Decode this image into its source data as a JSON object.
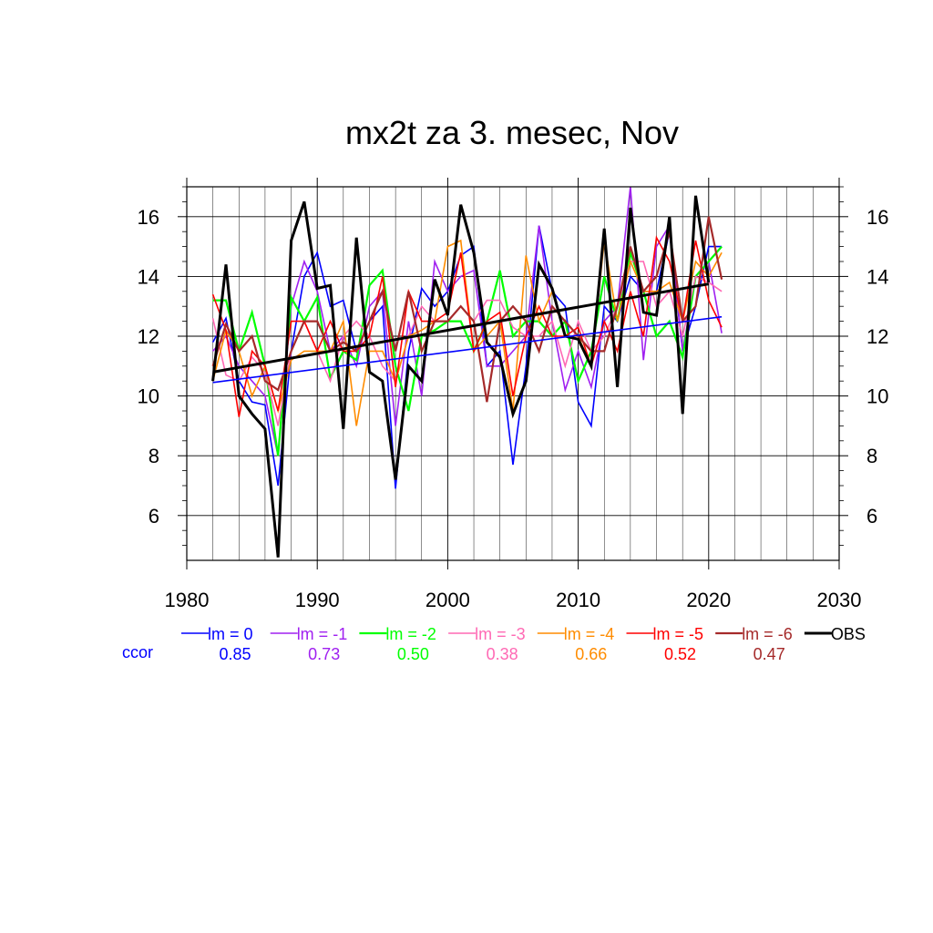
{
  "chart_data": {
    "type": "line",
    "title": "mx2t za 3. mesec, Nov",
    "xlabel": "",
    "ylabel": "",
    "xlim": [
      1980,
      2030
    ],
    "ylim": [
      4.5,
      17
    ],
    "x_ticks": [
      1980,
      1990,
      2000,
      2010,
      2020,
      2030
    ],
    "y_ticks": [
      6,
      8,
      10,
      12,
      14,
      16
    ],
    "grid": true,
    "legend_position": "bottom",
    "ccor_label": "ccor",
    "x": [
      1982,
      1983,
      1984,
      1985,
      1986,
      1987,
      1988,
      1989,
      1990,
      1991,
      1992,
      1993,
      1994,
      1995,
      1996,
      1997,
      1998,
      1999,
      2000,
      2001,
      2002,
      2003,
      2004,
      2005,
      2006,
      2007,
      2008,
      2009,
      2010,
      2011,
      2012,
      2013,
      2014,
      2015,
      2016,
      2017,
      2018,
      2019,
      2020,
      2021
    ],
    "series": [
      {
        "name": "lm = 0",
        "color": "#0000ff",
        "width": 1.6,
        "ccor": "0.85",
        "values": [
          11.8,
          12.6,
          10.5,
          9.8,
          9.7,
          7.0,
          11.5,
          14.0,
          14.8,
          13.0,
          13.2,
          11.5,
          12.5,
          13.0,
          6.9,
          11.5,
          13.6,
          13.0,
          13.5,
          14.7,
          15.0,
          11.0,
          11.5,
          7.7,
          11.0,
          15.7,
          13.5,
          13.0,
          9.8,
          9.0,
          13.0,
          12.5,
          14.0,
          13.5,
          13.5,
          15.5,
          11.5,
          13.0,
          15.0,
          15.0
        ]
      },
      {
        "name": "lm = -1",
        "color": "#a020f0",
        "width": 1.6,
        "ccor": "0.73",
        "values": [
          11.5,
          12.0,
          11.0,
          10.5,
          10.0,
          8.0,
          13.0,
          14.5,
          13.5,
          11.5,
          12.0,
          11.0,
          13.0,
          13.5,
          9.0,
          12.5,
          10.0,
          14.5,
          13.5,
          14.0,
          14.2,
          11.0,
          11.0,
          11.5,
          12.0,
          15.7,
          12.5,
          10.2,
          11.5,
          10.3,
          12.5,
          13.0,
          17.0,
          11.2,
          15.0,
          15.7,
          11.5,
          14.0,
          14.5,
          12.1
        ]
      },
      {
        "name": "lm = -2",
        "color": "#00ff00",
        "width": 2.2,
        "ccor": "0.50",
        "values": [
          13.2,
          13.2,
          11.5,
          12.8,
          11.0,
          8.0,
          13.3,
          12.5,
          13.3,
          10.6,
          11.5,
          11.2,
          13.7,
          14.2,
          11.0,
          9.5,
          12.0,
          12.2,
          12.5,
          12.5,
          11.5,
          12.5,
          14.2,
          12.0,
          12.5,
          12.5,
          12.0,
          12.5,
          10.5,
          11.5,
          14.0,
          12.5,
          14.8,
          13.5,
          12.0,
          12.5,
          11.3,
          14.0,
          14.5,
          15.0
        ]
      },
      {
        "name": "lm = -3",
        "color": "#ff69b4",
        "width": 1.6,
        "ccor": "0.38",
        "values": [
          12.6,
          10.7,
          10.5,
          11.3,
          10.8,
          9.0,
          11.5,
          12.5,
          11.5,
          10.5,
          12.0,
          12.5,
          12.0,
          11.0,
          10.5,
          12.0,
          13.0,
          12.5,
          12.5,
          13.0,
          12.5,
          13.2,
          13.2,
          12.3,
          12.0,
          12.0,
          12.5,
          11.0,
          12.5,
          11.5,
          12.0,
          13.0,
          14.5,
          14.5,
          13.0,
          13.5,
          12.0,
          14.0,
          13.8,
          13.5
        ]
      },
      {
        "name": "lm = -4",
        "color": "#ff8c00",
        "width": 1.6,
        "ccor": "0.66",
        "values": [
          10.5,
          12.2,
          11.5,
          10.0,
          11.0,
          9.5,
          11.2,
          11.5,
          11.5,
          11.5,
          12.5,
          9.0,
          11.5,
          11.5,
          10.5,
          12.0,
          12.2,
          12.5,
          15.0,
          15.2,
          11.5,
          12.0,
          12.5,
          9.5,
          14.7,
          12.5,
          13.5,
          12.0,
          12.0,
          11.0,
          15.2,
          12.5,
          14.5,
          13.5,
          13.5,
          13.8,
          12.5,
          14.5,
          14.0,
          14.8
        ]
      },
      {
        "name": "lm = -5",
        "color": "#ff0000",
        "width": 1.6,
        "ccor": "0.52",
        "values": [
          13.4,
          12.2,
          9.3,
          11.5,
          11.0,
          9.5,
          12.5,
          12.5,
          11.5,
          12.5,
          11.5,
          11.5,
          12.0,
          14.0,
          10.3,
          13.5,
          12.5,
          12.5,
          12.8,
          14.8,
          11.5,
          12.5,
          12.8,
          10.0,
          12.0,
          13.0,
          12.0,
          12.0,
          12.3,
          11.0,
          12.5,
          11.5,
          13.5,
          12.0,
          15.3,
          14.5,
          12.5,
          15.2,
          13.2,
          12.3
        ]
      },
      {
        "name": "lm = -6",
        "color": "#a52a2a",
        "width": 2.2,
        "ccor": "0.47",
        "values": [
          11.0,
          12.4,
          11.5,
          12.0,
          10.5,
          10.2,
          11.5,
          12.5,
          12.5,
          11.5,
          11.8,
          11.5,
          12.5,
          13.5,
          11.5,
          13.5,
          11.5,
          12.5,
          12.5,
          13.0,
          12.5,
          9.8,
          12.5,
          13.0,
          12.5,
          11.5,
          13.0,
          12.5,
          12.0,
          11.5,
          11.5,
          13.0,
          15.0,
          13.5,
          14.0,
          15.5,
          12.5,
          13.0,
          16.0,
          13.9
        ]
      },
      {
        "name": "OBS",
        "color": "#000000",
        "width": 3.0,
        "ccor": "",
        "values": [
          10.5,
          14.4,
          10.0,
          9.4,
          8.9,
          4.6,
          15.2,
          16.5,
          13.6,
          13.7,
          8.9,
          15.3,
          10.8,
          10.5,
          7.2,
          11.0,
          10.5,
          13.9,
          12.7,
          16.4,
          14.8,
          11.8,
          11.3,
          9.4,
          10.5,
          14.4,
          13.6,
          12.0,
          11.9,
          11.0,
          15.6,
          10.3,
          16.3,
          12.8,
          12.7,
          16.0,
          9.4,
          16.7,
          13.8,
          null
        ]
      }
    ],
    "trends": [
      {
        "name": "lm = 0 trend",
        "color": "#0000ff",
        "width": 1.6,
        "x": [
          1982,
          2021
        ],
        "y": [
          10.45,
          12.65
        ]
      },
      {
        "name": "OBS trend",
        "color": "#000000",
        "width": 3.0,
        "x": [
          1982,
          2020
        ],
        "y": [
          10.8,
          13.75
        ]
      }
    ]
  }
}
